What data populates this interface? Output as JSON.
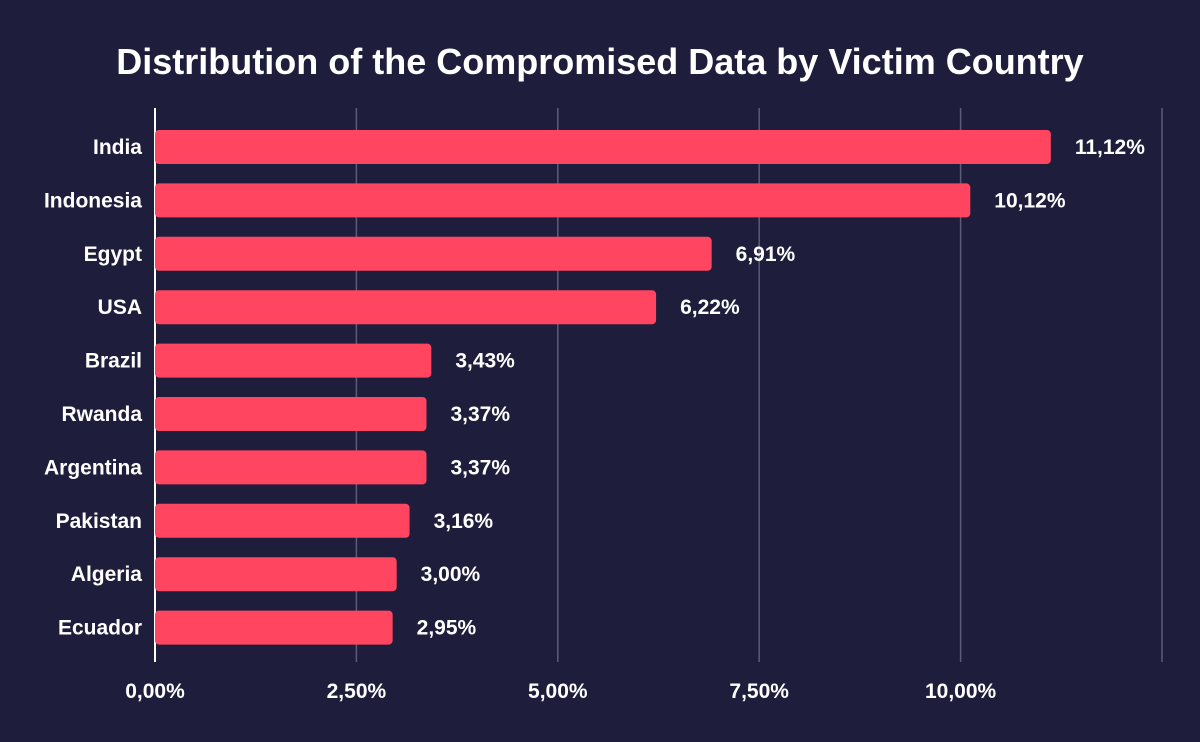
{
  "colors": {
    "background": "#1e1e3c",
    "bar": "#ff4560",
    "gridline": "#5c5c78",
    "text": "#ffffff"
  },
  "chart_data": {
    "type": "bar",
    "orientation": "horizontal",
    "title": "Distribution of the Compromised Data by Victim Country",
    "xlabel": "",
    "ylabel": "",
    "categories": [
      "India",
      "Indonesia",
      "Egypt",
      "USA",
      "Brazil",
      "Rwanda",
      "Argentina",
      "Pakistan",
      "Algeria",
      "Ecuador"
    ],
    "values": [
      11.12,
      10.12,
      6.91,
      6.22,
      3.43,
      3.37,
      3.37,
      3.16,
      3.0,
      2.95
    ],
    "value_labels": [
      "11,12%",
      "10,12%",
      "6,91%",
      "6,22%",
      "3,43%",
      "3,37%",
      "3,37%",
      "3,16%",
      "3,00%",
      "2,95%"
    ],
    "xlim": [
      0,
      12.5
    ],
    "xticks": [
      0,
      2.5,
      5,
      7.5,
      10
    ],
    "xtick_labels": [
      "0,00%",
      "2,50%",
      "5,00%",
      "7,50%",
      "10,00%"
    ],
    "grid": "vertical",
    "legend": "none"
  }
}
